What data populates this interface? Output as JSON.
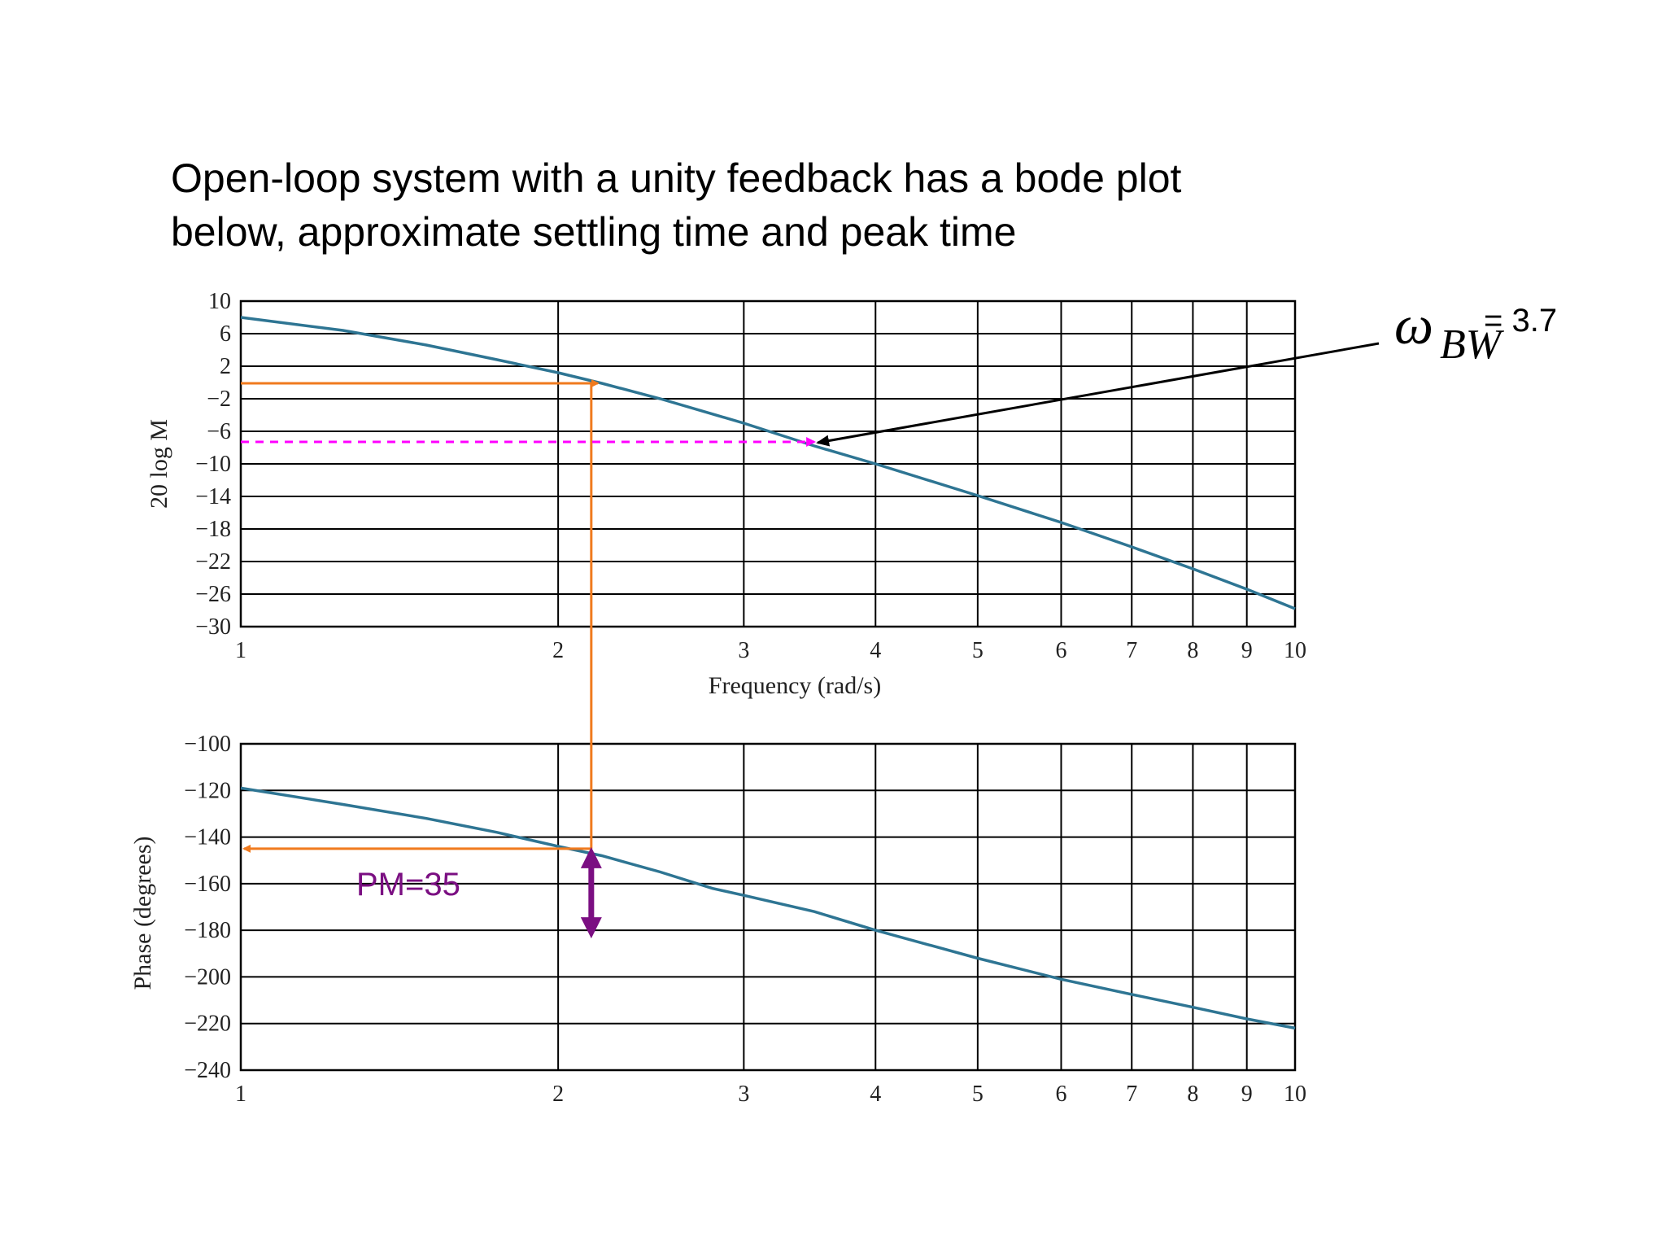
{
  "slide": {
    "question_line1": "Open-loop system with a unity feedback has a bode plot",
    "question_line2": "below, approximate settling time and peak time"
  },
  "colors": {
    "curve": "#2e7593",
    "orange": "#f07a1e",
    "magenta": "#ff00ff",
    "purple": "#7b0f82",
    "grid": "#000000"
  },
  "annotations": {
    "omega_symbol": "ω",
    "omega_sub": "BW",
    "bw_value": "= 3.7",
    "pm_label": "PM=35"
  },
  "chart_data": [
    {
      "type": "line",
      "title": "",
      "xlabel": "Frequency (rad/s)",
      "ylabel": "20 log M",
      "xscale": "log",
      "xlim": [
        1,
        10
      ],
      "ylim": [
        -30,
        10
      ],
      "x_ticks": [
        1,
        2,
        3,
        4,
        5,
        6,
        7,
        8,
        9,
        10
      ],
      "y_ticks": [
        10,
        6,
        2,
        -2,
        -6,
        -10,
        -14,
        -18,
        -22,
        -26,
        -30
      ],
      "grid": true,
      "series": [
        {
          "x": [
            1,
            1.25,
            1.5,
            1.75,
            2,
            2.2,
            2.5,
            3,
            3.5,
            4,
            5,
            6,
            7,
            8,
            9,
            10
          ],
          "y": [
            8,
            6.4,
            4.6,
            2.8,
            1.2,
            -0.1,
            -2,
            -5,
            -7.8,
            -10,
            -13.9,
            -17.2,
            -20.2,
            -22.9,
            -25.4,
            -27.8
          ]
        }
      ],
      "annotations": [
        {
          "type": "orange-guide",
          "from_y": -0.1,
          "x": 2.15
        },
        {
          "type": "magenta-dashed",
          "y": -7.3,
          "to_x": 3.5
        },
        {
          "type": "arrow",
          "text": "ω_BW = 3.7",
          "x": 3.5,
          "y": -7.3
        }
      ]
    },
    {
      "type": "line",
      "title": "",
      "xlabel": "",
      "ylabel": "Phase (degrees)",
      "xscale": "log",
      "xlim": [
        1,
        10
      ],
      "ylim": [
        -240,
        -100
      ],
      "x_ticks": [
        1,
        2,
        3,
        4,
        5,
        6,
        7,
        8,
        9,
        10
      ],
      "y_ticks": [
        -100,
        -120,
        -140,
        -160,
        -180,
        -200,
        -220,
        -240
      ],
      "grid": true,
      "series": [
        {
          "x": [
            1,
            1.25,
            1.5,
            1.75,
            2,
            2.2,
            2.5,
            2.8,
            3,
            3.5,
            4,
            5,
            6,
            7,
            8,
            9,
            10
          ],
          "y": [
            -119,
            -126,
            -132,
            -138,
            -144,
            -148,
            -155,
            -162,
            -165,
            -172,
            -180,
            -192,
            -201,
            -207.5,
            -213,
            -218,
            -222
          ]
        }
      ],
      "annotations": [
        {
          "type": "orange-guide",
          "x": 2.15,
          "y": -145
        },
        {
          "type": "purple-double-arrow",
          "x": 2.15,
          "from_y": -145,
          "to_y": -180,
          "text": "PM=35"
        }
      ]
    }
  ]
}
